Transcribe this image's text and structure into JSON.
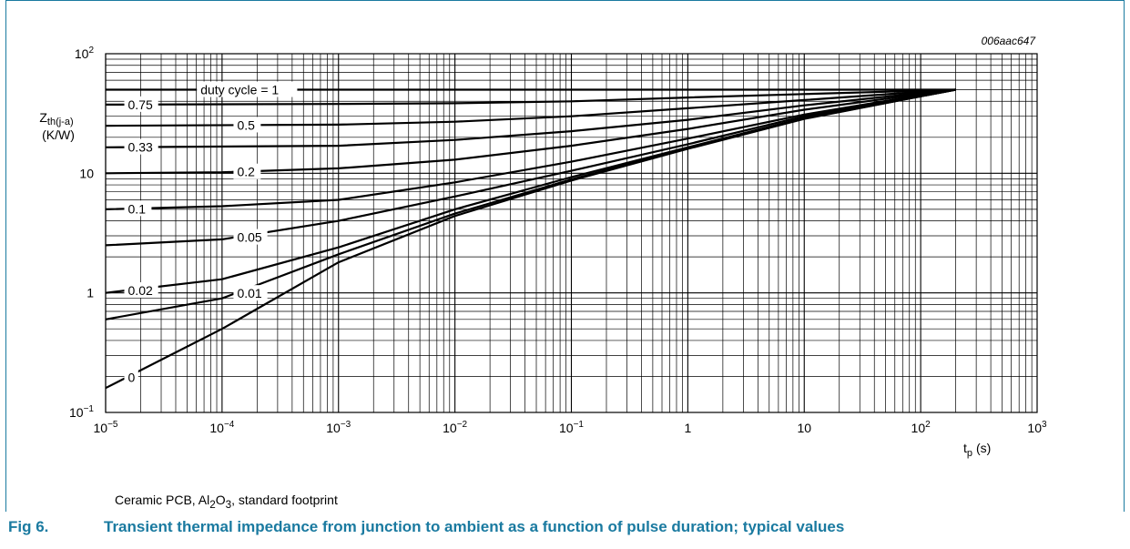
{
  "figure": {
    "code": "006aac647",
    "note_parts": [
      "Ceramic PCB, Al",
      "2",
      "O",
      "3",
      ", standard footprint"
    ],
    "caption_number": "Fig 6.",
    "caption_title": "Transient thermal impedance from junction to ambient as a function of pulse duration; typical values"
  },
  "colors": {
    "accent": "#1a7aa0",
    "grid": "#000000",
    "curve": "#000000"
  },
  "chart_data": {
    "type": "line",
    "x_scale": "log",
    "y_scale": "log",
    "xlim": [
      1e-05,
      1000
    ],
    "ylim": [
      0.1,
      100
    ],
    "grid": true,
    "x_tick_labels": [
      {
        "value": 1e-05,
        "base": "10",
        "exp": "−5"
      },
      {
        "value": 0.0001,
        "base": "10",
        "exp": "−4"
      },
      {
        "value": 0.001,
        "base": "10",
        "exp": "−3"
      },
      {
        "value": 0.01,
        "base": "10",
        "exp": "−2"
      },
      {
        "value": 0.1,
        "base": "10",
        "exp": "−1"
      },
      {
        "value": 1,
        "base": "1",
        "exp": ""
      },
      {
        "value": 10,
        "base": "10",
        "exp": ""
      },
      {
        "value": 100,
        "base": "10",
        "exp": "2"
      },
      {
        "value": 1000,
        "base": "10",
        "exp": "3"
      }
    ],
    "y_tick_labels": [
      {
        "value": 0.1,
        "base": "10",
        "exp": "−1"
      },
      {
        "value": 1,
        "base": "1",
        "exp": ""
      },
      {
        "value": 10,
        "base": "10",
        "exp": ""
      },
      {
        "value": 100,
        "base": "10",
        "exp": "2"
      }
    ],
    "ylabel_main": "Z",
    "ylabel_sub": "th(j-a)",
    "ylabel_unit": "(K/W)",
    "xlabel_main": "t",
    "xlabel_sub": "p",
    "xlabel_unit": "(s)",
    "series": [
      {
        "name": "duty cycle = 1",
        "label_at": 6.3e-05,
        "points": [
          [
            1e-05,
            50
          ],
          [
            0.001,
            50
          ],
          [
            0.1,
            50
          ],
          [
            10,
            50
          ],
          [
            200,
            50
          ]
        ]
      },
      {
        "name": "0.75",
        "label_at": 1.5e-05,
        "points": [
          [
            1e-05,
            37.5
          ],
          [
            0.001,
            38
          ],
          [
            0.01,
            38.5
          ],
          [
            0.1,
            40
          ],
          [
            1,
            43
          ],
          [
            10,
            46
          ],
          [
            100,
            49
          ],
          [
            200,
            50
          ]
        ]
      },
      {
        "name": "0.5",
        "label_at": 0.00013,
        "points": [
          [
            1e-05,
            25
          ],
          [
            0.001,
            25.5
          ],
          [
            0.01,
            27
          ],
          [
            0.1,
            30
          ],
          [
            1,
            35
          ],
          [
            10,
            41
          ],
          [
            100,
            48
          ],
          [
            200,
            50
          ]
        ]
      },
      {
        "name": "0.33",
        "label_at": 1.5e-05,
        "points": [
          [
            1e-05,
            16.5
          ],
          [
            0.001,
            17
          ],
          [
            0.01,
            19
          ],
          [
            0.1,
            22.5
          ],
          [
            1,
            28
          ],
          [
            10,
            37
          ],
          [
            100,
            47
          ],
          [
            200,
            50
          ]
        ]
      },
      {
        "name": "0.2",
        "label_at": 0.00013,
        "points": [
          [
            1e-05,
            10
          ],
          [
            0.0001,
            10.2
          ],
          [
            0.001,
            11
          ],
          [
            0.01,
            13
          ],
          [
            0.1,
            17
          ],
          [
            1,
            23.5
          ],
          [
            10,
            34
          ],
          [
            100,
            46
          ],
          [
            200,
            50
          ]
        ]
      },
      {
        "name": "0.1",
        "label_at": 1.5e-05,
        "points": [
          [
            1e-05,
            5
          ],
          [
            0.0001,
            5.3
          ],
          [
            0.001,
            6
          ],
          [
            0.01,
            8.4
          ],
          [
            0.1,
            12.5
          ],
          [
            1,
            19.5
          ],
          [
            10,
            31
          ],
          [
            100,
            45
          ],
          [
            200,
            50
          ]
        ]
      },
      {
        "name": "0.05",
        "label_at": 0.00013,
        "points": [
          [
            1e-05,
            2.5
          ],
          [
            0.0001,
            2.8
          ],
          [
            0.001,
            4
          ],
          [
            0.01,
            6.4
          ],
          [
            0.1,
            10.5
          ],
          [
            1,
            17.5
          ],
          [
            10,
            30
          ],
          [
            100,
            44.5
          ],
          [
            200,
            50
          ]
        ]
      },
      {
        "name": "0.02",
        "label_at": 1.5e-05,
        "points": [
          [
            1e-05,
            1
          ],
          [
            0.0001,
            1.3
          ],
          [
            0.001,
            2.4
          ],
          [
            0.01,
            5
          ],
          [
            0.1,
            9.3
          ],
          [
            1,
            16.5
          ],
          [
            10,
            29
          ],
          [
            100,
            44
          ],
          [
            200,
            50
          ]
        ]
      },
      {
        "name": "0.01",
        "label_at": 0.00013,
        "points": [
          [
            1e-05,
            0.6
          ],
          [
            0.0001,
            0.9
          ],
          [
            0.001,
            2.1
          ],
          [
            0.01,
            4.6
          ],
          [
            0.1,
            8.9
          ],
          [
            1,
            16.2
          ],
          [
            10,
            28.7
          ],
          [
            100,
            44
          ],
          [
            200,
            50
          ]
        ]
      },
      {
        "name": "0",
        "label_at": 1.5e-05,
        "points": [
          [
            1e-05,
            0.16
          ],
          [
            0.0001,
            0.5
          ],
          [
            0.001,
            1.8
          ],
          [
            0.01,
            4.4
          ],
          [
            0.1,
            8.7
          ],
          [
            1,
            16
          ],
          [
            10,
            28.5
          ],
          [
            100,
            44
          ],
          [
            200,
            50
          ]
        ]
      }
    ]
  }
}
